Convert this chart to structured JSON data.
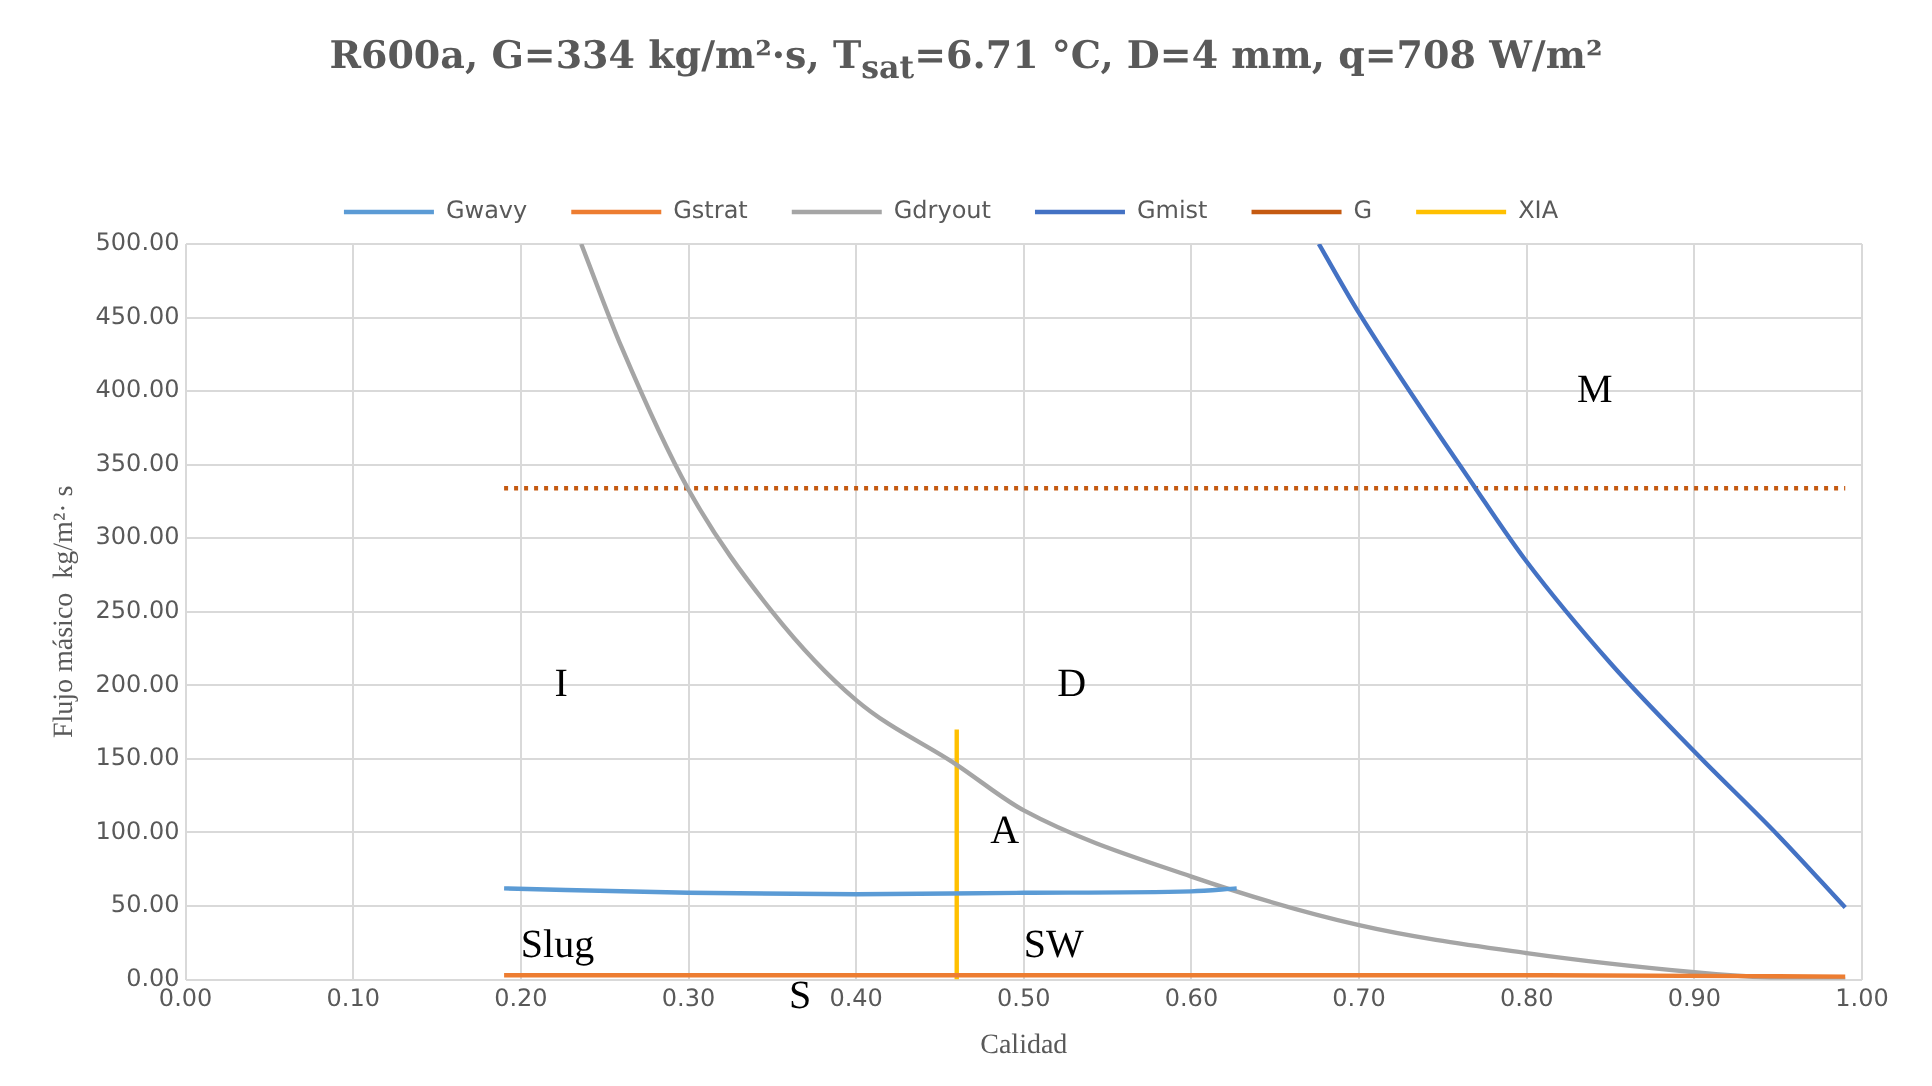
{
  "chart_data": {
    "type": "line",
    "title": "R600a, G=334 kg/m²·s, T$_{sat}$=6.71 °C, D=4 mm, q=708 W/m²",
    "xlabel": "Calidad",
    "ylabel": "Flujo másico  kg/m²· s",
    "xlim": [
      0,
      1
    ],
    "xticks": [
      {
        "value": 0,
        "label": "0.00"
      },
      {
        "value": 0.1,
        "label": "0.10"
      },
      {
        "value": 0.2,
        "label": "0.20"
      },
      {
        "value": 0.3,
        "label": "0.30"
      },
      {
        "value": 0.4,
        "label": "0.40"
      },
      {
        "value": 0.5,
        "label": "0.50"
      },
      {
        "value": 0.6,
        "label": "0.60"
      },
      {
        "value": 0.7,
        "label": "0.70"
      },
      {
        "value": 0.8,
        "label": "0.80"
      },
      {
        "value": 0.9,
        "label": "0.90"
      },
      {
        "value": 1,
        "label": "1.00"
      }
    ],
    "ylim": [
      0,
      500
    ],
    "yticks": [
      {
        "value": 0,
        "label": "0.00"
      },
      {
        "value": 50,
        "label": "50.00"
      },
      {
        "value": 100,
        "label": "100.00"
      },
      {
        "value": 150,
        "label": "150.00"
      },
      {
        "value": 200,
        "label": "200.00"
      },
      {
        "value": 250,
        "label": "250.00"
      },
      {
        "value": 300,
        "label": "300.00"
      },
      {
        "value": 350,
        "label": "350.00"
      },
      {
        "value": 400,
        "label": "400.00"
      },
      {
        "value": 450,
        "label": "450.00"
      },
      {
        "value": 500,
        "label": "500.00"
      }
    ],
    "grid": true,
    "legend": "top",
    "marker": "none",
    "series": [
      {
        "name": "Gwavy",
        "color": "#5b9bd5",
        "x": [
          0.19,
          0.3,
          0.4,
          0.5,
          0.6,
          0.627
        ],
        "values": [
          62,
          59,
          58,
          59,
          60,
          62
        ]
      },
      {
        "name": "Gstrat",
        "color": "#ed7d31",
        "x": [
          0.19,
          0.4,
          0.6,
          0.8,
          0.99
        ],
        "values": [
          3,
          3,
          3,
          3,
          2
        ]
      },
      {
        "name": "Gdryout",
        "color": "#a5a5a5",
        "x": [
          0.236,
          0.26,
          0.3,
          0.35,
          0.4,
          0.46,
          0.5,
          0.6,
          0.7,
          0.8,
          0.9,
          0.95,
          0.99
        ],
        "values": [
          500,
          430,
          333,
          250,
          190,
          146,
          115,
          70,
          37,
          18,
          5,
          1,
          0
        ]
      },
      {
        "name": "Gmist",
        "color": "#4472c4",
        "x": [
          0.676,
          0.7,
          0.77,
          0.8,
          0.85,
          0.9,
          0.95,
          0.99
        ],
        "values": [
          500,
          453,
          333,
          284,
          215,
          155,
          98,
          49
        ]
      },
      {
        "name": "G",
        "color": "#c55a11",
        "line_style": "dotted",
        "x": [
          0.19,
          0.99
        ],
        "values": [
          334,
          334
        ]
      },
      {
        "name": "XIA",
        "color": "#ffc000",
        "x": [
          0.46,
          0.46
        ],
        "values": [
          0,
          170
        ]
      }
    ],
    "annotations": [
      "I",
      "D",
      "M",
      "A",
      "Slug",
      "SW",
      "S"
    ]
  }
}
